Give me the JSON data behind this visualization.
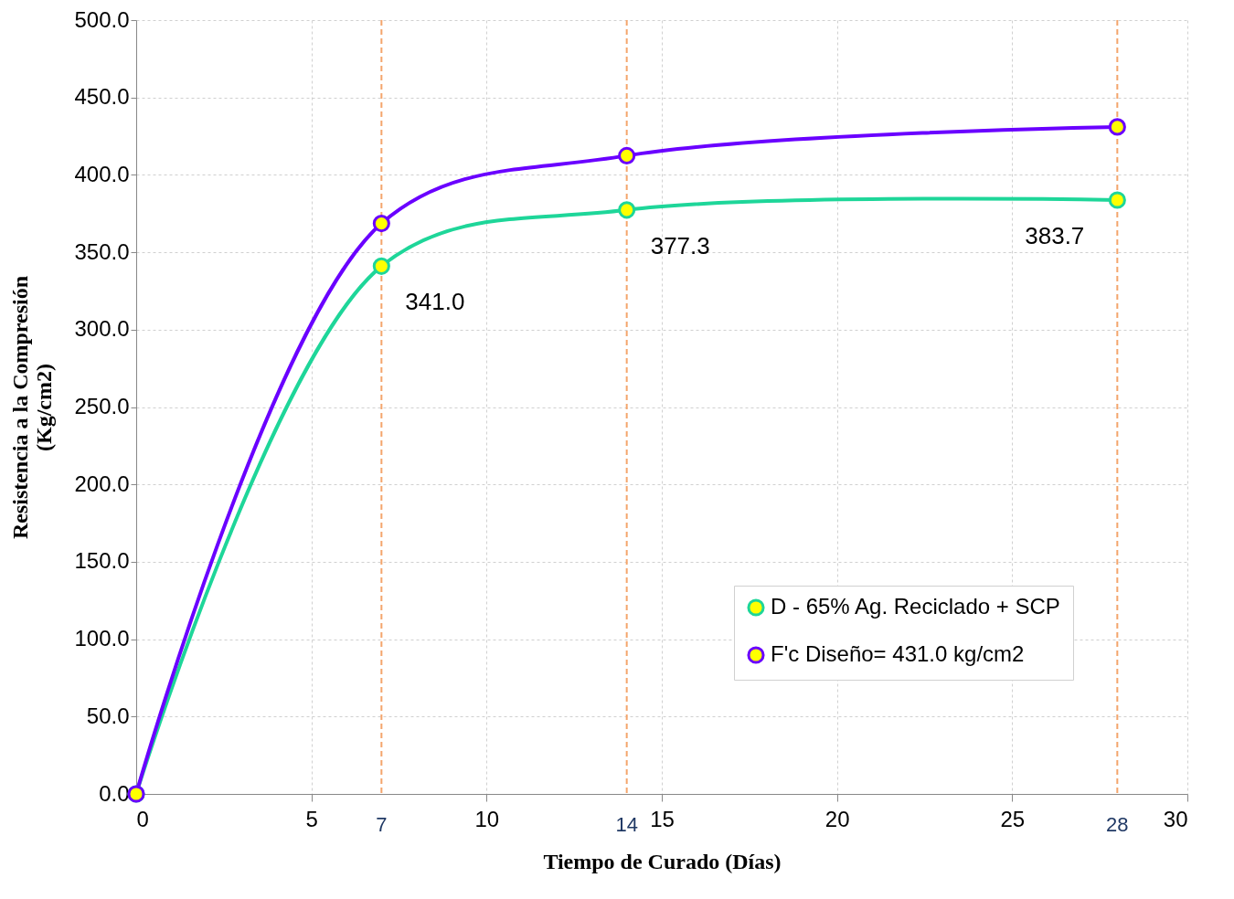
{
  "chart_data": {
    "type": "line",
    "xlabel": "Tiempo de Curado (Días)",
    "ylabel": "Resistencia a la Compresión\n(Kg/cm2)",
    "x": [
      0,
      7,
      14,
      28
    ],
    "series": [
      {
        "name": "D - 65% Ag. Reciclado + SCP",
        "color": "#1ed699",
        "values": [
          0.0,
          341.0,
          377.3,
          383.7
        ],
        "value_labels": [
          null,
          "341.0",
          "377.3",
          "383.7"
        ]
      },
      {
        "name": "F'c Diseño= 431.0  kg/cm2",
        "color": "#6a00ff",
        "values": [
          0.0,
          368.6,
          412.4,
          431.0
        ]
      }
    ],
    "xlim": [
      0,
      30
    ],
    "xticks": [
      0,
      5,
      10,
      15,
      20,
      25,
      30
    ],
    "ylim": [
      0,
      500
    ],
    "yticks": [
      {
        "value": 0,
        "label": "0.0"
      },
      {
        "value": 50,
        "label": "50.0"
      },
      {
        "value": 100,
        "label": "100.0"
      },
      {
        "value": 150,
        "label": "150.0"
      },
      {
        "value": 200,
        "label": "200.0"
      },
      {
        "value": 250,
        "label": "250.0"
      },
      {
        "value": 300,
        "label": "300.0"
      },
      {
        "value": 350,
        "label": "350.0"
      },
      {
        "value": 400,
        "label": "400.0"
      },
      {
        "value": 450,
        "label": "450.0"
      },
      {
        "value": 500,
        "label": "500.0"
      }
    ],
    "ref_lines": [
      {
        "axis": "x",
        "value": 7,
        "label": "7",
        "color": "#f4a56c",
        "line_style": "dashed"
      },
      {
        "axis": "x",
        "value": 14,
        "label": "14",
        "color": "#f4a56c",
        "line_style": "dashed"
      },
      {
        "axis": "x",
        "value": 28,
        "label": "28",
        "color": "#f4a56c",
        "line_style": "dashed"
      }
    ],
    "grid": true,
    "legend": "bottom right",
    "marker": "circle",
    "line_style": "solid"
  }
}
